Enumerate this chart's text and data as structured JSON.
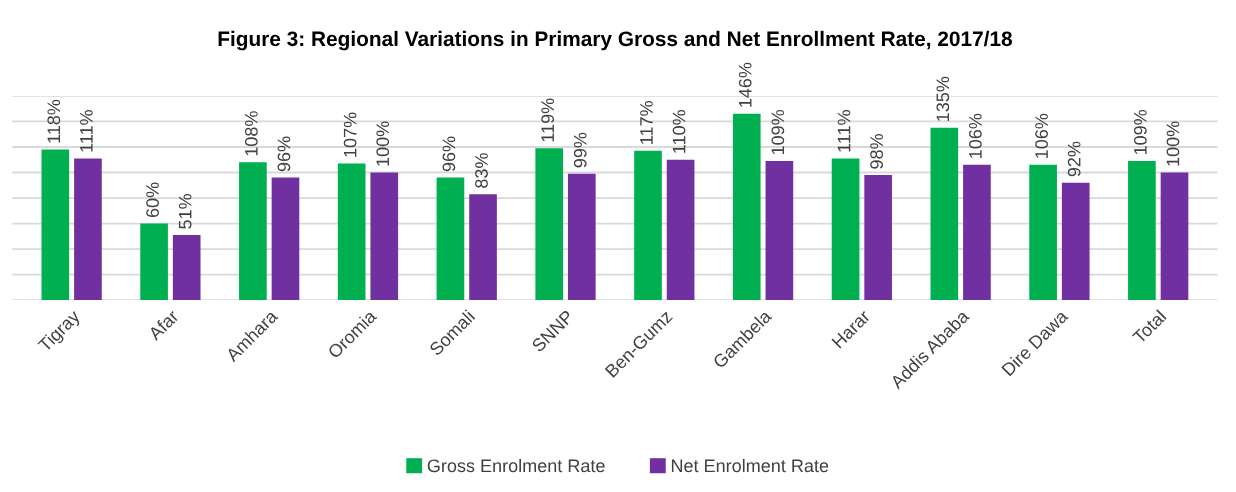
{
  "chart_data": {
    "type": "bar",
    "title": "Figure 3: Regional Variations in Primary Gross and Net Enrollment Rate, 2017/18",
    "categories": [
      "Tigray",
      "Afar",
      "Amhara",
      "Oromia",
      "Somali",
      "SNNP",
      "Ben-Gumz",
      "Gambela",
      "Harar",
      "Addis Ababa",
      "Dire Dawa",
      "Total"
    ],
    "series": [
      {
        "name": "Gross Enrolment Rate",
        "color": "#00b050",
        "values": [
          118,
          60,
          108,
          107,
          96,
          119,
          117,
          146,
          111,
          135,
          106,
          109
        ],
        "value_labels": [
          "118%",
          "60%",
          "108%",
          "107%",
          "96%",
          "119%",
          "117%",
          "146%",
          "111%",
          "135%",
          "106%",
          "109%"
        ]
      },
      {
        "name": "Net Enrolment Rate",
        "color": "#7030a0",
        "values": [
          111,
          51,
          96,
          100,
          83,
          99,
          110,
          109,
          98,
          106,
          92,
          100
        ],
        "value_labels": [
          "111%",
          "51%",
          "96%",
          "100%",
          "83%",
          "99%",
          "110%",
          "109%",
          "98%",
          "106%",
          "92%",
          "100%"
        ]
      }
    ],
    "ylim": [
      0,
      160
    ],
    "yticks": [
      {
        "value": 0,
        "label": null
      },
      {
        "value": 20,
        "label": null
      },
      {
        "value": 40,
        "label": null
      },
      {
        "value": 60,
        "label": null
      },
      {
        "value": 80,
        "label": null
      },
      {
        "value": 100,
        "label": null
      },
      {
        "value": 120,
        "label": null
      },
      {
        "value": 140,
        "label": null
      },
      {
        "value": 160,
        "label": null
      }
    ],
    "tick_labels": "x",
    "grid": "y",
    "legend": "bottom"
  }
}
